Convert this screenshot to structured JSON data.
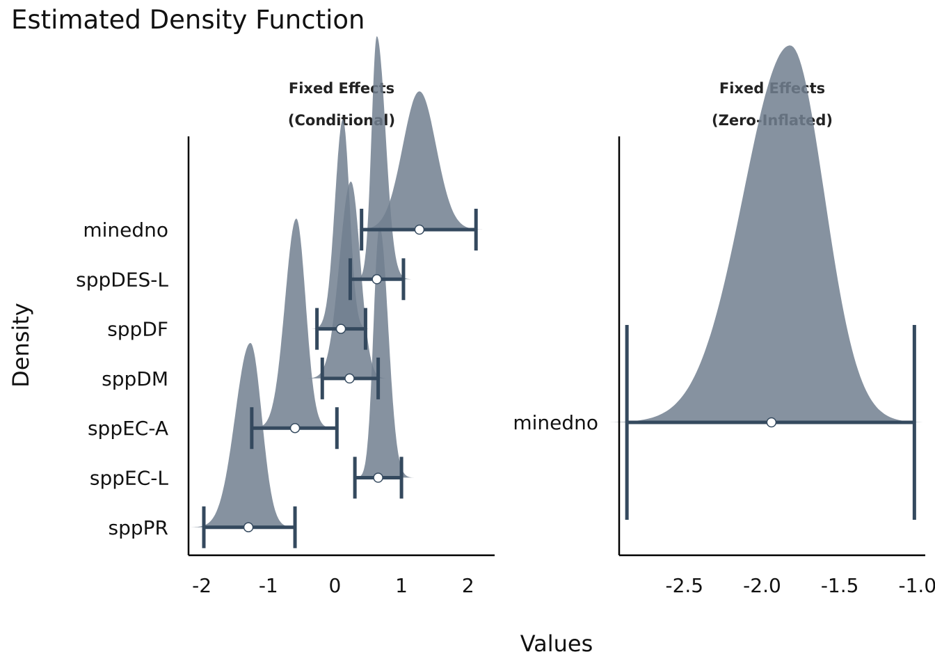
{
  "chart_data": {
    "type": "density",
    "title": "Estimated Density Function",
    "xlabel": "Values",
    "ylabel": "Density",
    "colors": {
      "fill": "#717f8f",
      "interval": "#34495e",
      "point_fill": "#ffffff"
    },
    "panels": [
      {
        "facet_line1": "Fixed Effects",
        "facet_line2": "(Conditional)",
        "xlim": [
          -2.2,
          2.4
        ],
        "xticks": [
          -2,
          -1,
          0,
          1,
          2
        ],
        "xtick_labels": [
          "-2",
          "-1",
          "0",
          "1",
          "2"
        ],
        "categories": [
          "minedno",
          "sppDES-L",
          "sppDF",
          "sppDM",
          "sppEC-A",
          "sppEC-L",
          "sppPR"
        ],
        "series": [
          {
            "name": "minedno",
            "estimate": 1.27,
            "ci": [
              0.4,
              2.12
            ],
            "peak": 1.27,
            "sd_left": 0.25,
            "sd_right": 0.25,
            "height": 0.33
          },
          {
            "name": "sppDES-L",
            "estimate": 0.63,
            "ci": [
              0.23,
              1.03
            ],
            "peak": 0.63,
            "sd_left": 0.08,
            "sd_right": 0.13,
            "height": 0.58
          },
          {
            "name": "sppDF",
            "estimate": 0.09,
            "ci": [
              -0.27,
              0.46
            ],
            "peak": 0.12,
            "sd_left": 0.12,
            "sd_right": 0.1,
            "height": 0.5
          },
          {
            "name": "sppDM",
            "estimate": 0.22,
            "ci": [
              -0.19,
              0.65
            ],
            "peak": 0.24,
            "sd_left": 0.17,
            "sd_right": 0.14,
            "height": 0.47
          },
          {
            "name": "sppEC-A",
            "estimate": -0.6,
            "ci": [
              -1.25,
              0.03
            ],
            "peak": -0.58,
            "sd_left": 0.17,
            "sd_right": 0.14,
            "height": 0.5
          },
          {
            "name": "sppEC-L",
            "estimate": 0.65,
            "ci": [
              0.3,
              1.0
            ],
            "peak": 0.67,
            "sd_left": 0.09,
            "sd_right": 0.13,
            "height": 0.6
          },
          {
            "name": "sppPR",
            "estimate": -1.3,
            "ci": [
              -1.97,
              -0.6
            ],
            "peak": -1.27,
            "sd_left": 0.23,
            "sd_right": 0.17,
            "height": 0.44
          }
        ]
      },
      {
        "facet_line1": "Fixed Effects",
        "facet_line2": "(Zero-Inflated)",
        "xlim": [
          -2.92,
          -0.95
        ],
        "xticks": [
          -2.5,
          -2.0,
          -1.5,
          -1.0
        ],
        "xtick_labels": [
          "-2.5",
          "-2.0",
          "-1.5",
          "-1.0"
        ],
        "categories": [
          "minedno"
        ],
        "series": [
          {
            "name": "minedno",
            "estimate": -1.94,
            "ci": [
              -2.87,
              -1.02
            ],
            "peak": -1.82,
            "sd_left": 0.3,
            "sd_right": 0.22,
            "height": 0.9
          }
        ]
      }
    ]
  }
}
